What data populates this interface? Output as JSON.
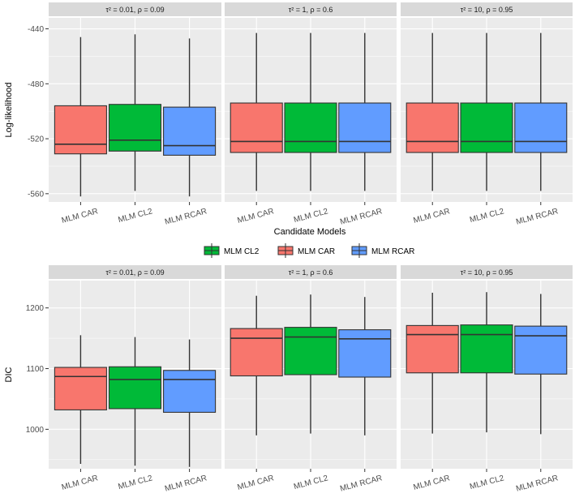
{
  "colors": {
    "MLM CL2": "#00ba38",
    "MLM CAR": "#f8766d",
    "MLM RCAR": "#619cff"
  },
  "x_title": "Candidate Models",
  "legend": {
    "position": "bottom",
    "items": [
      "MLM CL2",
      "MLM CAR",
      "MLM RCAR"
    ]
  },
  "chart_data": [
    {
      "type": "boxplot",
      "ylabel": "Log-likelihood",
      "ylim": [
        -566,
        -432
      ],
      "yticks": [
        -440,
        -480,
        -520,
        -560
      ],
      "ytick_labels": [
        "-440",
        "-480",
        "-520",
        "-560"
      ],
      "categories": [
        "MLM CAR",
        "MLM CL2",
        "MLM RCAR"
      ],
      "panels": [
        {
          "strip": "τ² = 0.01,  ρ = 0.09",
          "boxes": [
            {
              "model": "MLM CAR",
              "min": -562,
              "q1": -531,
              "median": -524,
              "q3": -496,
              "max": -446
            },
            {
              "model": "MLM CL2",
              "min": -558,
              "q1": -529,
              "median": -521,
              "q3": -495,
              "max": -444
            },
            {
              "model": "MLM RCAR",
              "min": -562,
              "q1": -532,
              "median": -525,
              "q3": -497,
              "max": -447
            }
          ]
        },
        {
          "strip": "τ² = 1,  ρ = 0.6",
          "boxes": [
            {
              "model": "MLM CAR",
              "min": -558,
              "q1": -530,
              "median": -522,
              "q3": -494,
              "max": -443
            },
            {
              "model": "MLM CL2",
              "min": -558,
              "q1": -530,
              "median": -522,
              "q3": -494,
              "max": -443
            },
            {
              "model": "MLM RCAR",
              "min": -558,
              "q1": -530,
              "median": -522,
              "q3": -494,
              "max": -443
            }
          ]
        },
        {
          "strip": "τ² = 10,  ρ = 0.95",
          "boxes": [
            {
              "model": "MLM CAR",
              "min": -558,
              "q1": -530,
              "median": -522,
              "q3": -494,
              "max": -443
            },
            {
              "model": "MLM CL2",
              "min": -558,
              "q1": -530,
              "median": -522,
              "q3": -494,
              "max": -443
            },
            {
              "model": "MLM RCAR",
              "min": -558,
              "q1": -530,
              "median": -522,
              "q3": -494,
              "max": -443
            }
          ]
        }
      ]
    },
    {
      "type": "boxplot",
      "ylabel": "DIC",
      "ylim": [
        935,
        1245
      ],
      "yticks": [
        1200,
        1100,
        1000
      ],
      "ytick_labels": [
        "1200",
        "1100",
        "1000"
      ],
      "categories": [
        "MLM CAR",
        "MLM CL2",
        "MLM RCAR"
      ],
      "panels": [
        {
          "strip": "τ² = 0.01,  ρ = 0.09",
          "boxes": [
            {
              "model": "MLM CAR",
              "min": 943,
              "q1": 1032,
              "median": 1087,
              "q3": 1102,
              "max": 1155
            },
            {
              "model": "MLM CL2",
              "min": 940,
              "q1": 1034,
              "median": 1082,
              "q3": 1103,
              "max": 1152
            },
            {
              "model": "MLM RCAR",
              "min": 938,
              "q1": 1028,
              "median": 1082,
              "q3": 1097,
              "max": 1148
            }
          ]
        },
        {
          "strip": "τ² = 1,  ρ = 0.6",
          "boxes": [
            {
              "model": "MLM CAR",
              "min": 990,
              "q1": 1088,
              "median": 1150,
              "q3": 1166,
              "max": 1220
            },
            {
              "model": "MLM CL2",
              "min": 993,
              "q1": 1090,
              "median": 1152,
              "q3": 1168,
              "max": 1222
            },
            {
              "model": "MLM RCAR",
              "min": 990,
              "q1": 1086,
              "median": 1149,
              "q3": 1164,
              "max": 1218
            }
          ]
        },
        {
          "strip": "τ² = 10,  ρ = 0.95",
          "boxes": [
            {
              "model": "MLM CAR",
              "min": 993,
              "q1": 1093,
              "median": 1156,
              "q3": 1171,
              "max": 1225
            },
            {
              "model": "MLM CL2",
              "min": 995,
              "q1": 1093,
              "median": 1156,
              "q3": 1172,
              "max": 1226
            },
            {
              "model": "MLM RCAR",
              "min": 992,
              "q1": 1091,
              "median": 1154,
              "q3": 1170,
              "max": 1223
            }
          ]
        }
      ]
    }
  ]
}
